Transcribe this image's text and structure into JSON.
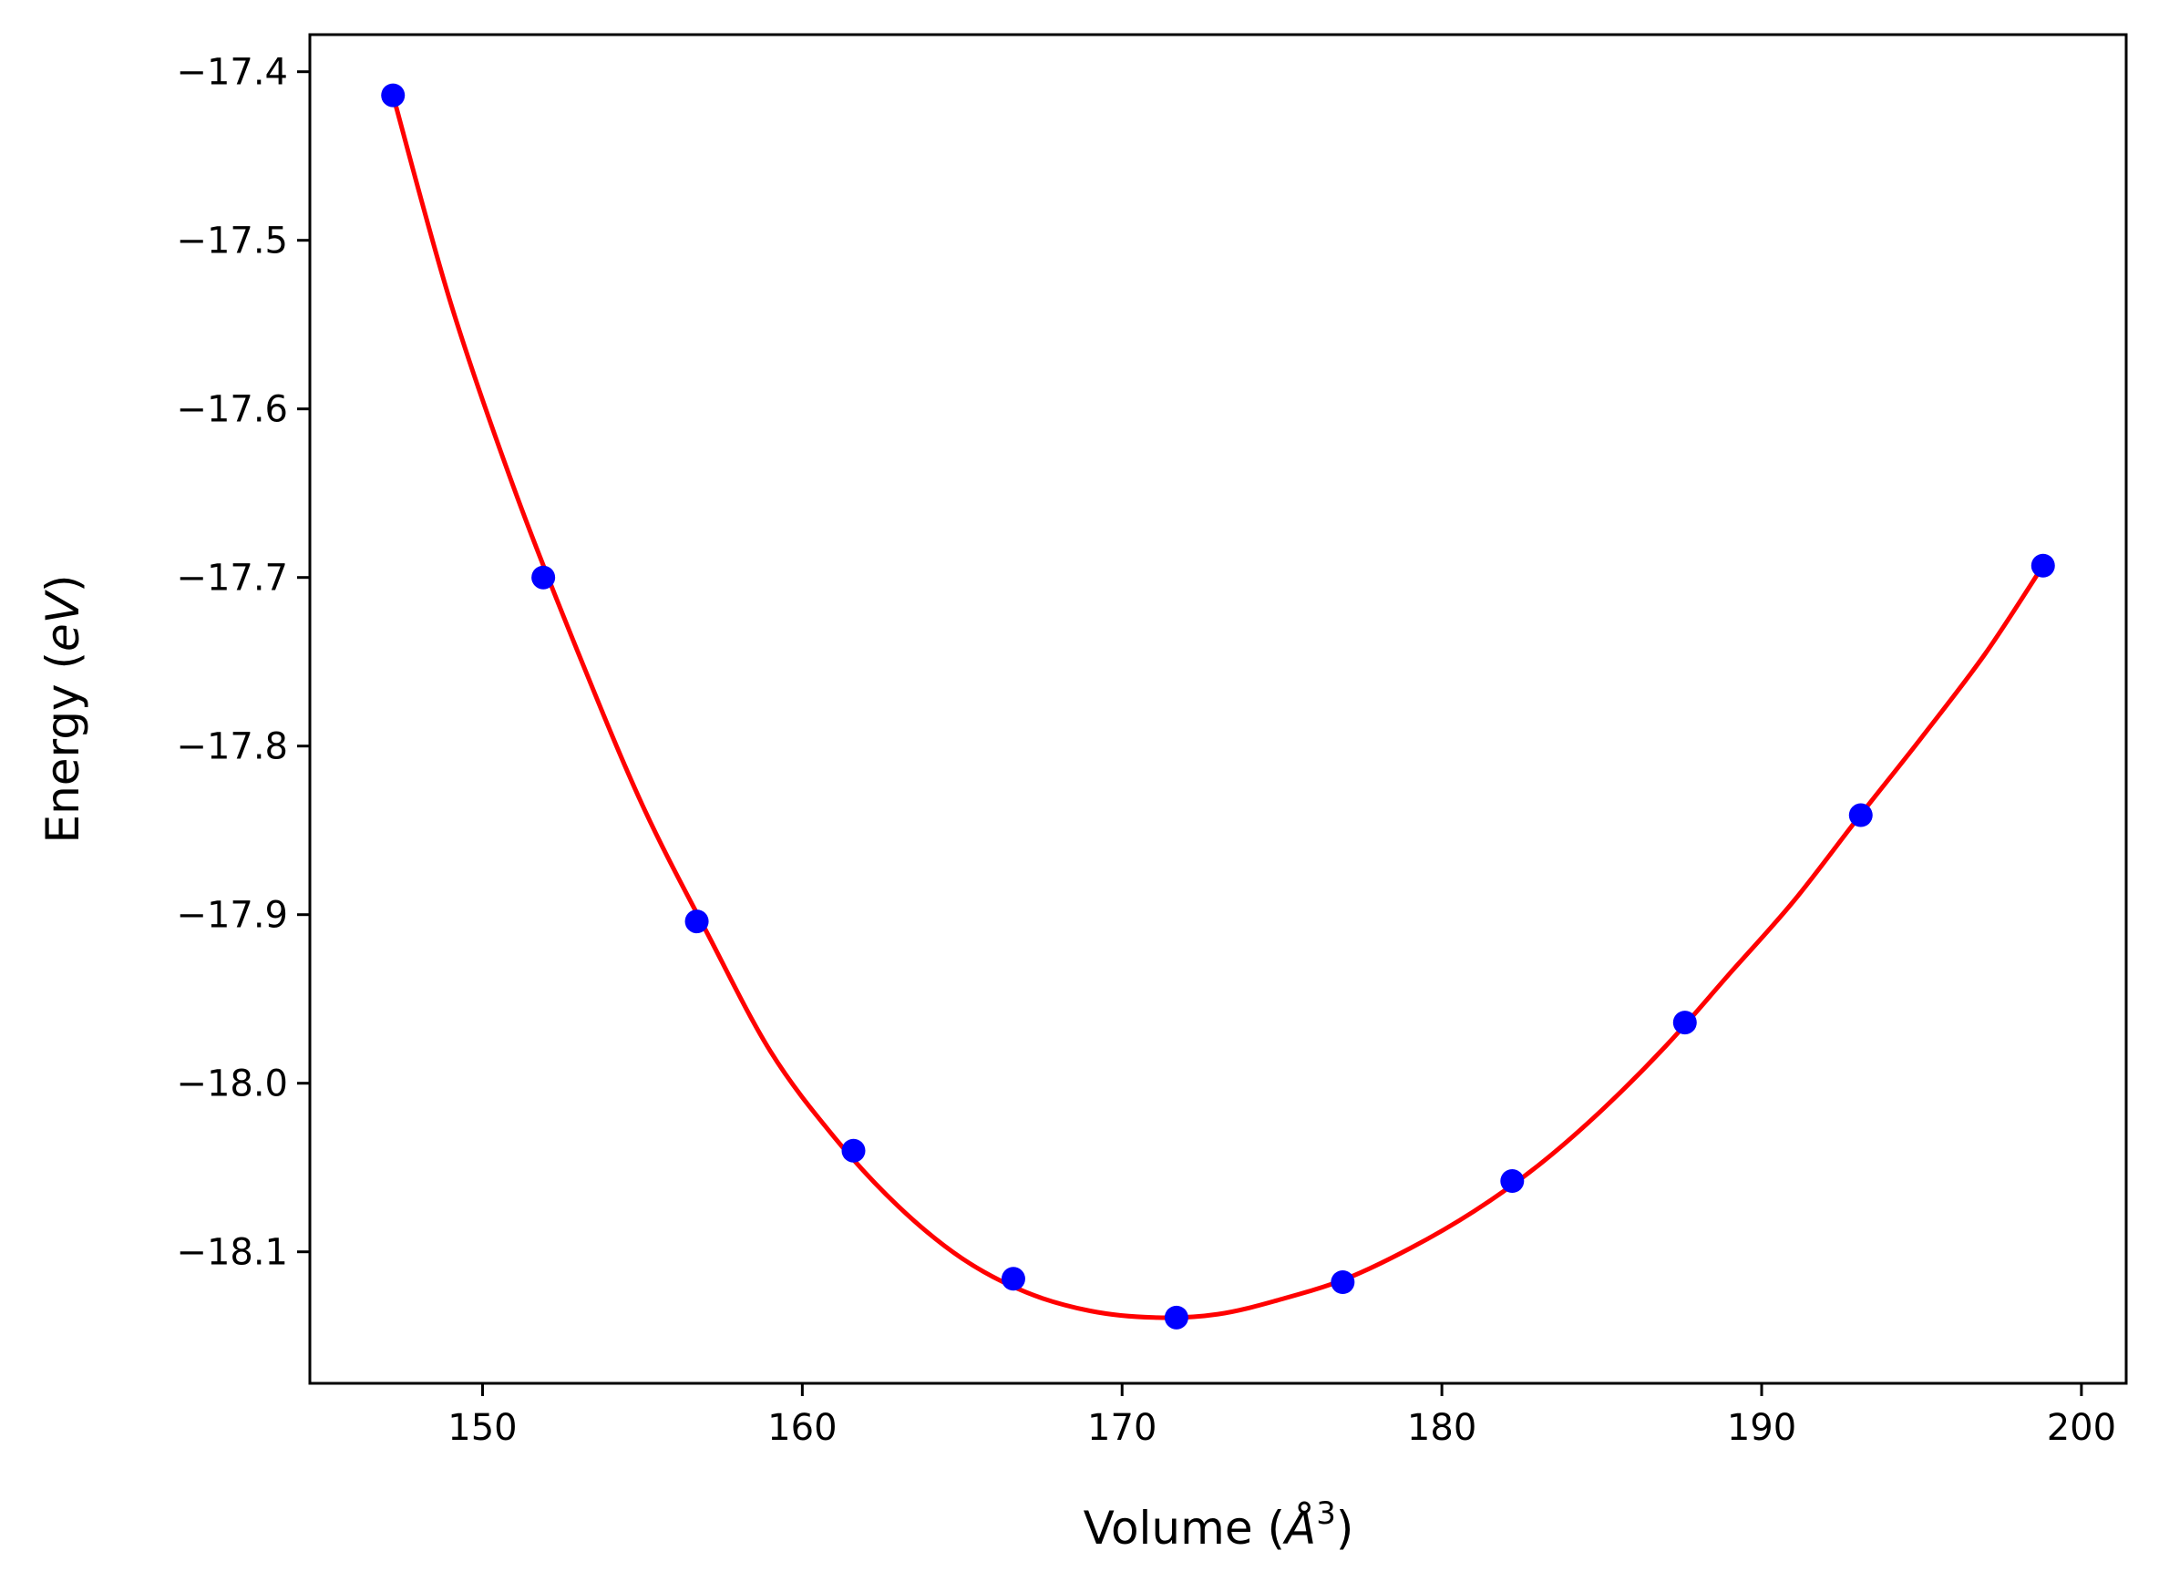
{
  "chart_data": {
    "type": "scatter",
    "title": "",
    "xlabel": "Volume (",
    "xlabel_symbol": "Å",
    "xlabel_exponent": "3",
    "xlabel_close": ")",
    "ylabel": "Energy (",
    "ylabel_unit": "eV",
    "ylabel_close": ")",
    "xlim": [
      144.6,
      201.4
    ],
    "ylim": [
      -18.178,
      -17.378
    ],
    "xticks": [
      150,
      160,
      170,
      180,
      190,
      200
    ],
    "xtick_labels": [
      "150",
      "160",
      "170",
      "180",
      "190",
      "200"
    ],
    "yticks": [
      -17.4,
      -17.5,
      -17.6,
      -17.7,
      -17.8,
      -17.9,
      -18.0,
      -18.1
    ],
    "ytick_labels": [
      "−17.4",
      "−17.5",
      "−17.6",
      "−17.7",
      "−17.8",
      "−17.9",
      "−18.0",
      "−18.1"
    ],
    "grid": false,
    "series": [
      {
        "kind": "points",
        "color": "#0000ff",
        "x": [
          147.2,
          151.9,
          156.7,
          161.6,
          166.6,
          171.7,
          176.9,
          182.2,
          187.6,
          193.1,
          198.8
        ],
        "y": [
          -17.414,
          -17.7,
          -17.904,
          -18.04,
          -18.116,
          -18.139,
          -18.118,
          -18.058,
          -17.964,
          -17.841,
          -17.693
        ]
      },
      {
        "kind": "fit-line",
        "color": "#ff0000",
        "x": [
          147.2,
          149.0,
          151.0,
          153.0,
          155.0,
          157.0,
          159.0,
          161.0,
          163.0,
          165.0,
          167.0,
          169.0,
          171.0,
          173.0,
          175.0,
          177.0,
          179.0,
          181.0,
          183.0,
          185.0,
          187.0,
          189.0,
          191.0,
          193.0,
          195.0,
          197.0,
          198.8
        ],
        "y": [
          -17.414,
          -17.537,
          -17.648,
          -17.745,
          -17.835,
          -17.91,
          -17.981,
          -18.032,
          -18.073,
          -18.104,
          -18.124,
          -18.135,
          -18.139,
          -18.137,
          -18.128,
          -18.116,
          -18.098,
          -18.076,
          -18.049,
          -18.016,
          -17.978,
          -17.935,
          -17.892,
          -17.843,
          -17.795,
          -17.745,
          -17.693
        ]
      }
    ]
  }
}
